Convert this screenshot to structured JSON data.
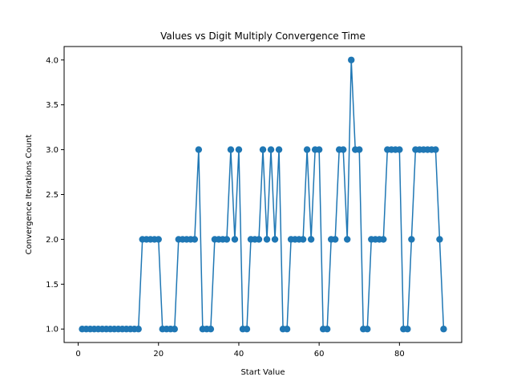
{
  "chart_data": {
    "type": "line",
    "title": "Values vs Digit Multiply Convergence Time",
    "xlabel": "Start Value",
    "ylabel": "Convergence Iterations Count",
    "xlim": [
      -3.5,
      95.5
    ],
    "ylim": [
      0.85,
      4.15
    ],
    "x_ticks": [
      0,
      20,
      40,
      60,
      80
    ],
    "y_ticks": [
      1.0,
      1.5,
      2.0,
      2.5,
      3.0,
      3.5,
      4.0
    ],
    "x_tick_labels": [
      "0",
      "20",
      "40",
      "60",
      "80"
    ],
    "y_tick_labels": [
      "1.0",
      "1.5",
      "2.0",
      "2.5",
      "3.0",
      "3.5",
      "4.0"
    ],
    "grid": false,
    "marker": "circle",
    "series": [
      {
        "color": "#1f77b4",
        "x": [
          1,
          2,
          3,
          4,
          5,
          6,
          7,
          8,
          9,
          10,
          11,
          12,
          13,
          14,
          15,
          16,
          17,
          18,
          19,
          20,
          21,
          22,
          23,
          24,
          25,
          26,
          27,
          28,
          29,
          30,
          31,
          32,
          33,
          34,
          35,
          36,
          37,
          38,
          39,
          40,
          41,
          42,
          43,
          44,
          45,
          46,
          47,
          48,
          49,
          50,
          51,
          52,
          53,
          54,
          55,
          56,
          57,
          58,
          59,
          60,
          61,
          62,
          63,
          64,
          65,
          66,
          67,
          68,
          69,
          70,
          71,
          72,
          73,
          74,
          75,
          76,
          77,
          78,
          79,
          80,
          81,
          82,
          83,
          84,
          85,
          86,
          87,
          88,
          89,
          90,
          91
        ],
        "y": [
          1,
          1,
          1,
          1,
          1,
          1,
          1,
          1,
          1,
          1,
          1,
          1,
          1,
          1,
          1,
          2,
          2,
          2,
          2,
          2,
          1,
          1,
          1,
          1,
          2,
          2,
          2,
          2,
          2,
          3,
          1,
          1,
          1,
          2,
          2,
          2,
          2,
          3,
          2,
          3,
          1,
          1,
          2,
          2,
          2,
          3,
          2,
          3,
          2,
          3,
          1,
          1,
          2,
          2,
          2,
          2,
          3,
          2,
          3,
          3,
          1,
          1,
          2,
          2,
          3,
          3,
          2,
          4,
          3,
          3,
          1,
          1,
          2,
          2,
          2,
          2,
          3,
          3,
          3,
          3,
          1,
          1,
          2,
          3,
          3,
          3,
          3,
          3,
          3,
          2,
          1
        ]
      }
    ]
  }
}
